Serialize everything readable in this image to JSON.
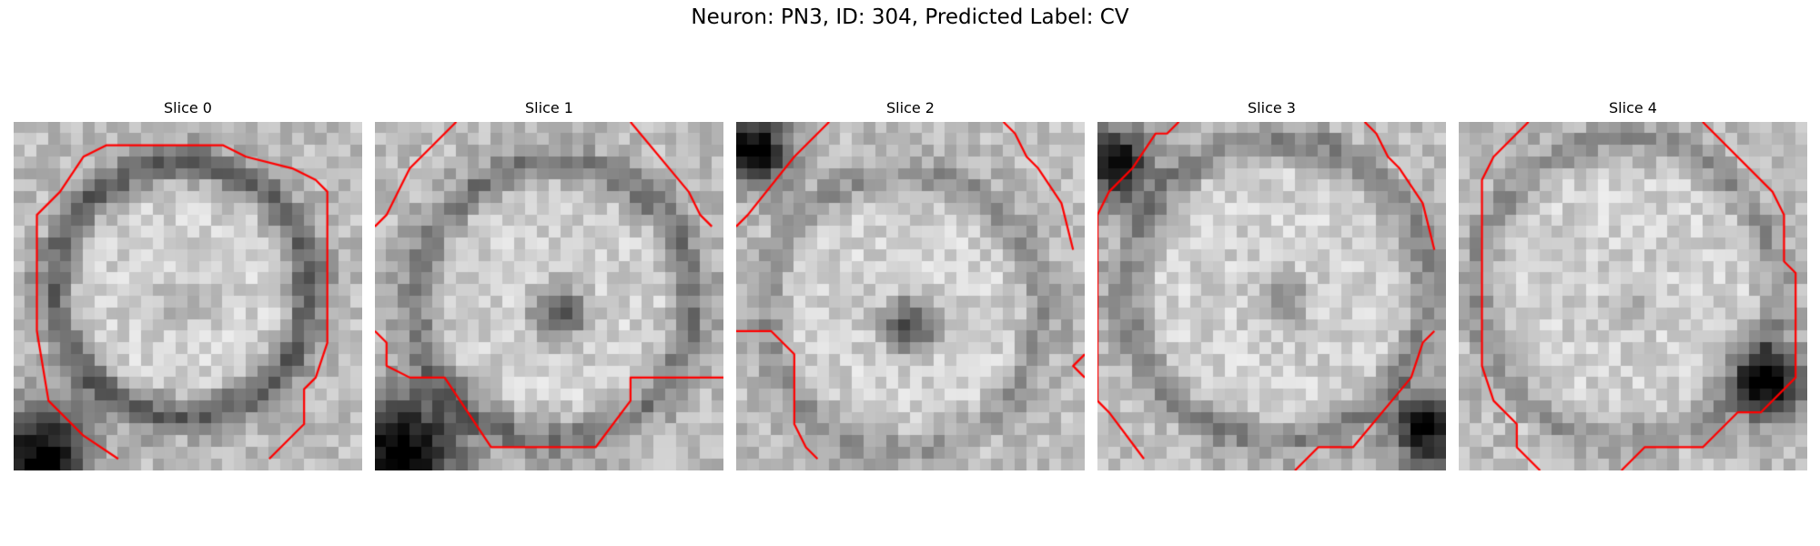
{
  "figure": {
    "title": "Neuron: PN3, ID: 304, Predicted Label: CV",
    "contour_color": "#ff0000"
  },
  "slices": [
    {
      "title": "Slice 0"
    },
    {
      "title": "Slice 1"
    },
    {
      "title": "Slice 2"
    },
    {
      "title": "Slice 3"
    },
    {
      "title": "Slice 4"
    }
  ]
}
